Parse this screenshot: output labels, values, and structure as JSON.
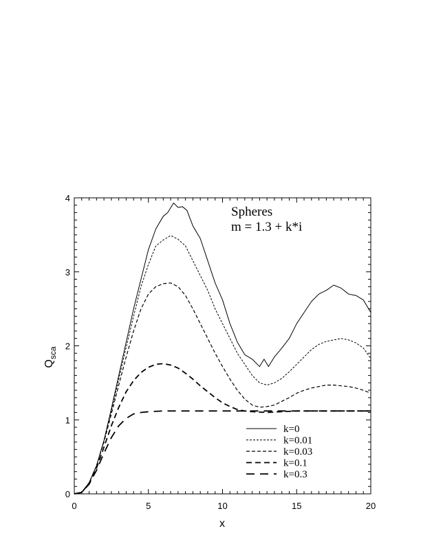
{
  "chart_data": {
    "type": "line",
    "title": "",
    "annotation": [
      "Spheres",
      "m = 1.3 + k*i"
    ],
    "xlabel": "x",
    "ylabel": "Q",
    "ylabel_subscript": "sca",
    "xlim": [
      0,
      20
    ],
    "ylim": [
      0,
      4
    ],
    "xticks": [
      0,
      5,
      10,
      15,
      20
    ],
    "yticks": [
      0,
      1,
      2,
      3,
      4
    ],
    "grid": false,
    "legend_position": "bottom-right",
    "series": [
      {
        "name": "k=0",
        "style": "solid",
        "x": [
          0,
          0.5,
          1,
          1.5,
          2,
          2.5,
          3,
          3.5,
          4,
          4.5,
          5,
          5.5,
          6,
          6.3,
          6.7,
          7,
          7.3,
          7.6,
          8,
          8.5,
          9,
          9.5,
          10,
          10.5,
          11,
          11.5,
          12,
          12.5,
          12.8,
          13.1,
          13.5,
          14,
          14.5,
          15,
          15.5,
          16,
          16.5,
          17,
          17.5,
          18,
          18.5,
          19,
          19.5,
          20
        ],
        "y": [
          0,
          0.02,
          0.15,
          0.38,
          0.72,
          1.15,
          1.6,
          2.05,
          2.5,
          2.9,
          3.3,
          3.58,
          3.75,
          3.8,
          3.93,
          3.87,
          3.88,
          3.83,
          3.62,
          3.45,
          3.15,
          2.85,
          2.62,
          2.3,
          2.05,
          1.88,
          1.82,
          1.72,
          1.82,
          1.72,
          1.85,
          1.97,
          2.1,
          2.3,
          2.45,
          2.6,
          2.7,
          2.75,
          2.82,
          2.78,
          2.7,
          2.68,
          2.62,
          2.45
        ]
      },
      {
        "name": "k=0.01",
        "style": "dotted",
        "x": [
          0,
          0.5,
          1,
          1.5,
          2,
          2.5,
          3,
          3.5,
          4,
          4.5,
          5,
          5.5,
          6,
          6.5,
          7,
          7.5,
          8,
          8.5,
          9,
          9.5,
          10,
          10.5,
          11,
          11.5,
          12,
          12.5,
          13,
          13.5,
          14,
          14.5,
          15,
          15.5,
          16,
          16.5,
          17,
          17.5,
          18,
          18.5,
          19,
          19.5,
          20
        ],
        "y": [
          0,
          0.02,
          0.15,
          0.38,
          0.72,
          1.12,
          1.55,
          1.98,
          2.4,
          2.8,
          3.1,
          3.35,
          3.43,
          3.49,
          3.44,
          3.35,
          3.15,
          2.95,
          2.75,
          2.5,
          2.3,
          2.1,
          1.9,
          1.75,
          1.6,
          1.5,
          1.47,
          1.5,
          1.56,
          1.65,
          1.75,
          1.85,
          1.95,
          2.02,
          2.06,
          2.08,
          2.1,
          2.08,
          2.04,
          1.97,
          1.83
        ]
      },
      {
        "name": "k=0.03",
        "style": "short-dash",
        "x": [
          0,
          0.5,
          1,
          1.5,
          2,
          2.5,
          3,
          3.5,
          4,
          4.5,
          5,
          5.5,
          6,
          6.5,
          7,
          7.5,
          8,
          8.5,
          9,
          9.5,
          10,
          10.5,
          11,
          11.5,
          12,
          12.5,
          13,
          13.5,
          14,
          14.5,
          15,
          15.5,
          16,
          16.5,
          17,
          17.5,
          18,
          18.5,
          19,
          19.5,
          20
        ],
        "y": [
          0,
          0.02,
          0.15,
          0.38,
          0.7,
          1.08,
          1.47,
          1.85,
          2.2,
          2.5,
          2.7,
          2.8,
          2.84,
          2.85,
          2.8,
          2.68,
          2.5,
          2.3,
          2.1,
          1.9,
          1.72,
          1.55,
          1.4,
          1.28,
          1.2,
          1.17,
          1.18,
          1.2,
          1.25,
          1.3,
          1.36,
          1.4,
          1.43,
          1.45,
          1.47,
          1.47,
          1.46,
          1.45,
          1.43,
          1.4,
          1.36
        ]
      },
      {
        "name": "k=0.1",
        "style": "dashed",
        "x": [
          0,
          0.5,
          1,
          1.5,
          2,
          2.5,
          3,
          3.5,
          4,
          4.5,
          5,
          5.5,
          6,
          6.5,
          7,
          7.5,
          8,
          8.5,
          9,
          9.5,
          10,
          10.5,
          11,
          11.5,
          12,
          13,
          14,
          15,
          16,
          17,
          18,
          19,
          20
        ],
        "y": [
          0,
          0.02,
          0.14,
          0.35,
          0.63,
          0.92,
          1.17,
          1.38,
          1.53,
          1.64,
          1.71,
          1.75,
          1.76,
          1.74,
          1.7,
          1.63,
          1.55,
          1.46,
          1.38,
          1.3,
          1.23,
          1.18,
          1.14,
          1.12,
          1.11,
          1.1,
          1.11,
          1.12,
          1.12,
          1.12,
          1.12,
          1.12,
          1.12
        ]
      },
      {
        "name": "k=0.3",
        "style": "long-dash",
        "x": [
          0,
          0.5,
          1,
          1.5,
          2,
          2.5,
          3,
          3.5,
          4,
          4.5,
          5,
          6,
          7,
          8,
          9,
          10,
          11,
          12,
          13,
          14,
          15,
          16,
          17,
          18,
          19,
          20
        ],
        "y": [
          0,
          0.02,
          0.13,
          0.32,
          0.55,
          0.76,
          0.92,
          1.02,
          1.08,
          1.1,
          1.11,
          1.12,
          1.12,
          1.12,
          1.12,
          1.12,
          1.12,
          1.12,
          1.12,
          1.12,
          1.12,
          1.12,
          1.12,
          1.12,
          1.12,
          1.12
        ]
      }
    ]
  }
}
